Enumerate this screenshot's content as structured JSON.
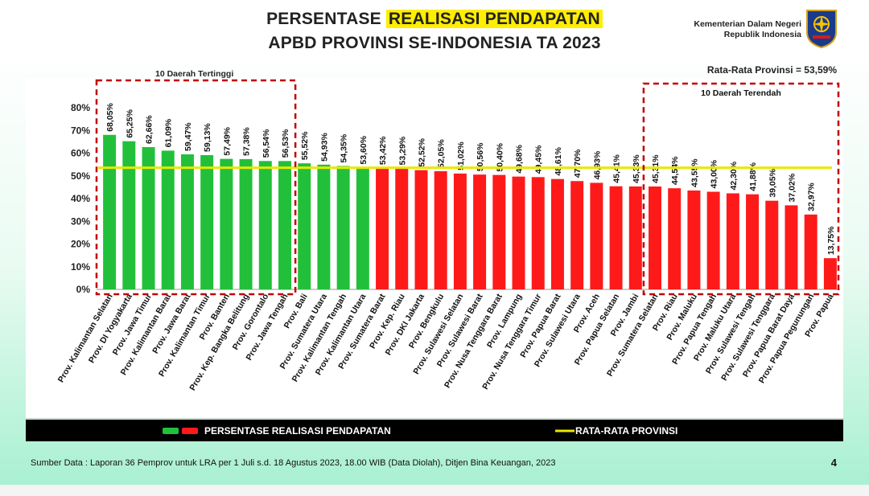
{
  "header": {
    "title_pre": "PERSENTASE ",
    "title_highlight": "REALISASI PENDAPATAN",
    "title_line2": "APBD PROVINSI SE-INDONESIA TA 2023",
    "ministry_line1": "Kementerian Dalam Negeri",
    "ministry_line2": "Republik Indonesia"
  },
  "labels": {
    "average_text": "Rata-Rata Provinsi = 53,59%",
    "top10": "10 Daerah Tertinggi",
    "bottom10": "10 Daerah Terendah",
    "legend_bars": "PERSENTASE REALISASI PENDAPATAN",
    "legend_line": "RATA-RATA PROVINSI",
    "source": "Sumber Data : Laporan 36 Pemprov untuk LRA per 1 Juli s.d. 18 Agustus 2023, 18.00 WIB (Data Diolah), Ditjen Bina Keuangan, 2023",
    "page_number": "4"
  },
  "colors": {
    "green": "#22c03a",
    "red": "#ff1a1a",
    "avg_line": "#e8e800",
    "dash_box": "#c00000"
  },
  "chart_data": {
    "type": "bar",
    "ylim": [
      0,
      80
    ],
    "yticks": [
      "0%",
      "10%",
      "20%",
      "30%",
      "40%",
      "50%",
      "60%",
      "70%",
      "80%"
    ],
    "average": 53.59,
    "categories": [
      "Prov. Kalimantan Selatan",
      "Prov. DI Yogyakarta",
      "Prov. Jawa Timur",
      "Prov. Kalimantan Barat",
      "Prov. Jawa Barat",
      "Prov. Kalimantan Timur",
      "Prov. Banten",
      "Prov. Kep. Bangka Belitung",
      "Prov. Gorontalo",
      "Prov. Jawa Tengah",
      "Prov. Bali",
      "Prov. Sumatera Utara",
      "Prov. Kalimantan Tengah",
      "Prov. Kalimantan Utara",
      "Prov. Sumatera Barat",
      "Prov. Kep. Riau",
      "Prov. DKI Jakarta",
      "Prov. Bengkulu",
      "Prov. Sulawesi Selatan",
      "Prov. Sulawesi Barat",
      "Prov. Nusa Tenggara Barat",
      "Prov. Lampung",
      "Prov. Nusa Tenggara Timur",
      "Prov. Papua Barat",
      "Prov. Sulawesi Utara",
      "Prov. Aceh",
      "Prov. Papua Selatan",
      "Prov. Jambi",
      "Prov. Sumatera Selatan",
      "Prov. Riau",
      "Prov. Maluku",
      "Prov. Papua Tengah",
      "Prov. Maluku Utara",
      "Prov. Sulawesi Tengah",
      "Prov. Sulawesi Tenggara",
      "Prov. Papua Barat Daya",
      "Prov. Papua Pegunungan",
      "Prov. Papua"
    ],
    "values": [
      68.05,
      65.25,
      62.66,
      61.09,
      59.47,
      59.13,
      57.49,
      57.38,
      56.54,
      56.53,
      55.52,
      54.93,
      54.35,
      53.6,
      53.42,
      53.29,
      52.52,
      52.05,
      51.02,
      50.56,
      50.4,
      49.68,
      49.45,
      48.61,
      47.7,
      46.93,
      45.41,
      45.33,
      45.31,
      44.54,
      43.55,
      43.0,
      42.3,
      41.88,
      39.05,
      37.02,
      32.97,
      13.75
    ],
    "value_labels": [
      "68,05%",
      "65,25%",
      "62,66%",
      "61,09%",
      "59,47%",
      "59,13%",
      "57,49%",
      "57,38%",
      "56,54%",
      "56,53%",
      "55,52%",
      "54,93%",
      "54,35%",
      "53,60%",
      "53,42%",
      "53,29%",
      "52,52%",
      "52,05%",
      "51,02%",
      "50,56%",
      "50,40%",
      "49,68%",
      "49,45%",
      "48,61%",
      "47,70%",
      "46,93%",
      "45,41%",
      "45,33%",
      "45,31%",
      "44,54%",
      "43,55%",
      "43,00%",
      "42,30%",
      "41,88%",
      "39,05%",
      "37,02%",
      "32,97%",
      "13,75%"
    ],
    "green_count": 14
  }
}
